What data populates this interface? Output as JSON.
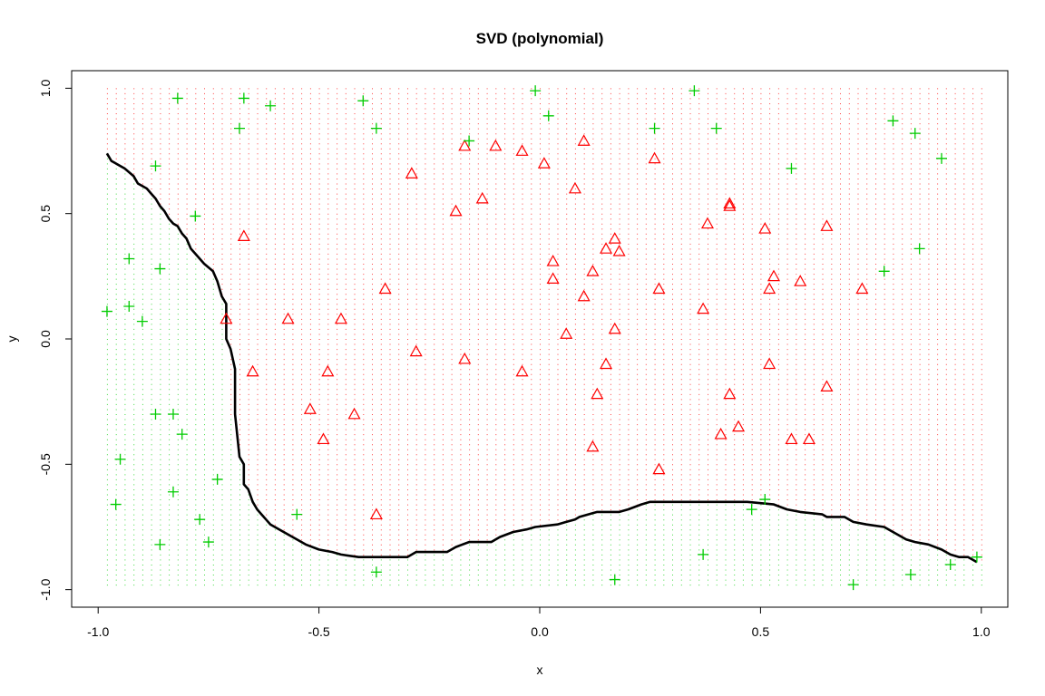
{
  "chart_data": {
    "type": "scatter",
    "title": "SVD (polynomial)",
    "xlabel": "x",
    "ylabel": "y",
    "xlim": [
      -1.06,
      1.06
    ],
    "ylim": [
      -1.07,
      1.07
    ],
    "xticks": [
      "-1.0",
      "-0.5",
      "0.0",
      "0.5",
      "1.0"
    ],
    "yticks": [
      "-1.0",
      "-0.5",
      "0.0",
      "0.5",
      "1.0"
    ],
    "grid": false,
    "colors": {
      "class_red": "#ff0000",
      "class_green": "#00cc00",
      "boundary": "#000000"
    },
    "series": [
      {
        "marker": "triangle",
        "color": "#ff0000",
        "points": [
          [
            -0.67,
            0.41
          ],
          [
            -0.71,
            0.08
          ],
          [
            -0.65,
            -0.13
          ],
          [
            -0.57,
            0.08
          ],
          [
            -0.52,
            -0.28
          ],
          [
            -0.48,
            -0.13
          ],
          [
            -0.49,
            -0.4
          ],
          [
            -0.45,
            0.08
          ],
          [
            -0.42,
            -0.3
          ],
          [
            -0.35,
            0.2
          ],
          [
            -0.37,
            -0.7
          ],
          [
            -0.29,
            0.66
          ],
          [
            -0.28,
            -0.05
          ],
          [
            -0.19,
            0.51
          ],
          [
            -0.17,
            -0.08
          ],
          [
            -0.17,
            0.77
          ],
          [
            -0.13,
            0.56
          ],
          [
            -0.1,
            0.77
          ],
          [
            -0.04,
            0.75
          ],
          [
            -0.04,
            -0.13
          ],
          [
            0.01,
            0.7
          ],
          [
            0.03,
            0.31
          ],
          [
            0.03,
            0.24
          ],
          [
            0.06,
            0.02
          ],
          [
            0.08,
            0.6
          ],
          [
            0.1,
            0.79
          ],
          [
            0.1,
            0.17
          ],
          [
            0.12,
            0.27
          ],
          [
            0.13,
            -0.22
          ],
          [
            0.15,
            0.36
          ],
          [
            0.15,
            -0.1
          ],
          [
            0.17,
            0.4
          ],
          [
            0.17,
            0.04
          ],
          [
            0.18,
            0.35
          ],
          [
            0.12,
            -0.43
          ],
          [
            0.26,
            0.72
          ],
          [
            0.27,
            0.2
          ],
          [
            0.27,
            -0.52
          ],
          [
            0.37,
            0.12
          ],
          [
            0.38,
            0.46
          ],
          [
            0.41,
            -0.38
          ],
          [
            0.43,
            0.53
          ],
          [
            0.43,
            0.54
          ],
          [
            0.43,
            -0.22
          ],
          [
            0.45,
            -0.35
          ],
          [
            0.51,
            0.44
          ],
          [
            0.52,
            0.2
          ],
          [
            0.52,
            -0.1
          ],
          [
            0.53,
            0.25
          ],
          [
            0.57,
            -0.4
          ],
          [
            0.59,
            0.23
          ],
          [
            0.61,
            -0.4
          ],
          [
            0.65,
            0.45
          ],
          [
            0.65,
            -0.19
          ],
          [
            0.73,
            0.2
          ]
        ]
      },
      {
        "marker": "plus",
        "color": "#00cc00",
        "points": [
          [
            -0.98,
            0.11
          ],
          [
            -0.96,
            -0.66
          ],
          [
            -0.95,
            -0.48
          ],
          [
            -0.93,
            0.32
          ],
          [
            -0.93,
            0.13
          ],
          [
            -0.9,
            0.07
          ],
          [
            -0.87,
            0.69
          ],
          [
            -0.87,
            -0.3
          ],
          [
            -0.86,
            0.28
          ],
          [
            -0.86,
            -0.82
          ],
          [
            -0.83,
            -0.3
          ],
          [
            -0.83,
            -0.61
          ],
          [
            -0.82,
            0.96
          ],
          [
            -0.81,
            -0.38
          ],
          [
            -0.78,
            0.49
          ],
          [
            -0.77,
            -0.72
          ],
          [
            -0.75,
            -0.81
          ],
          [
            -0.73,
            -0.56
          ],
          [
            -0.68,
            0.84
          ],
          [
            -0.67,
            0.96
          ],
          [
            -0.61,
            0.93
          ],
          [
            -0.55,
            -0.7
          ],
          [
            -0.4,
            0.95
          ],
          [
            -0.37,
            0.84
          ],
          [
            -0.37,
            -0.93
          ],
          [
            -0.16,
            0.79
          ],
          [
            -0.01,
            0.99
          ],
          [
            0.02,
            0.89
          ],
          [
            0.17,
            -0.96
          ],
          [
            0.26,
            0.84
          ],
          [
            0.35,
            0.99
          ],
          [
            0.37,
            -0.86
          ],
          [
            0.4,
            0.84
          ],
          [
            0.48,
            -0.68
          ],
          [
            0.51,
            -0.64
          ],
          [
            0.57,
            0.68
          ],
          [
            0.71,
            -0.98
          ],
          [
            0.78,
            0.27
          ],
          [
            0.8,
            0.87
          ],
          [
            0.84,
            -0.94
          ],
          [
            0.85,
            0.82
          ],
          [
            0.86,
            0.36
          ],
          [
            0.91,
            0.72
          ],
          [
            0.93,
            -0.9
          ],
          [
            0.99,
            -0.87
          ]
        ]
      }
    ],
    "boundary": [
      [
        -0.98,
        0.74
      ],
      [
        -0.97,
        0.71
      ],
      [
        -0.94,
        0.68
      ],
      [
        -0.92,
        0.65
      ],
      [
        -0.91,
        0.62
      ],
      [
        -0.89,
        0.6
      ],
      [
        -0.88,
        0.58
      ],
      [
        -0.87,
        0.56
      ],
      [
        -0.86,
        0.53
      ],
      [
        -0.85,
        0.51
      ],
      [
        -0.84,
        0.48
      ],
      [
        -0.83,
        0.46
      ],
      [
        -0.82,
        0.45
      ],
      [
        -0.81,
        0.42
      ],
      [
        -0.8,
        0.4
      ],
      [
        -0.79,
        0.36
      ],
      [
        -0.77,
        0.32
      ],
      [
        -0.76,
        0.3
      ],
      [
        -0.74,
        0.27
      ],
      [
        -0.73,
        0.23
      ],
      [
        -0.72,
        0.17
      ],
      [
        -0.71,
        0.14
      ],
      [
        -0.71,
        0.09
      ],
      [
        -0.71,
        0.0
      ],
      [
        -0.7,
        -0.04
      ],
      [
        -0.69,
        -0.12
      ],
      [
        -0.69,
        -0.3
      ],
      [
        -0.68,
        -0.47
      ],
      [
        -0.67,
        -0.5
      ],
      [
        -0.67,
        -0.58
      ],
      [
        -0.66,
        -0.6
      ],
      [
        -0.65,
        -0.65
      ],
      [
        -0.64,
        -0.68
      ],
      [
        -0.63,
        -0.7
      ],
      [
        -0.62,
        -0.72
      ],
      [
        -0.61,
        -0.74
      ],
      [
        -0.59,
        -0.76
      ],
      [
        -0.57,
        -0.78
      ],
      [
        -0.55,
        -0.8
      ],
      [
        -0.53,
        -0.82
      ],
      [
        -0.5,
        -0.84
      ],
      [
        -0.47,
        -0.85
      ],
      [
        -0.45,
        -0.86
      ],
      [
        -0.41,
        -0.87
      ],
      [
        -0.3,
        -0.87
      ],
      [
        -0.28,
        -0.85
      ],
      [
        -0.21,
        -0.85
      ],
      [
        -0.19,
        -0.83
      ],
      [
        -0.16,
        -0.81
      ],
      [
        -0.11,
        -0.81
      ],
      [
        -0.09,
        -0.79
      ],
      [
        -0.06,
        -0.77
      ],
      [
        -0.03,
        -0.76
      ],
      [
        -0.01,
        -0.75
      ],
      [
        0.04,
        -0.74
      ],
      [
        0.06,
        -0.73
      ],
      [
        0.08,
        -0.72
      ],
      [
        0.09,
        -0.71
      ],
      [
        0.11,
        -0.7
      ],
      [
        0.13,
        -0.69
      ],
      [
        0.18,
        -0.69
      ],
      [
        0.2,
        -0.68
      ],
      [
        0.23,
        -0.66
      ],
      [
        0.25,
        -0.65
      ],
      [
        0.47,
        -0.65
      ],
      [
        0.53,
        -0.66
      ],
      [
        0.56,
        -0.68
      ],
      [
        0.59,
        -0.69
      ],
      [
        0.64,
        -0.7
      ],
      [
        0.65,
        -0.71
      ],
      [
        0.69,
        -0.71
      ],
      [
        0.71,
        -0.73
      ],
      [
        0.74,
        -0.74
      ],
      [
        0.78,
        -0.75
      ],
      [
        0.8,
        -0.77
      ],
      [
        0.83,
        -0.8
      ],
      [
        0.85,
        -0.81
      ],
      [
        0.88,
        -0.82
      ],
      [
        0.91,
        -0.84
      ],
      [
        0.93,
        -0.86
      ],
      [
        0.95,
        -0.87
      ],
      [
        0.97,
        -0.87
      ],
      [
        0.99,
        -0.89
      ]
    ]
  }
}
